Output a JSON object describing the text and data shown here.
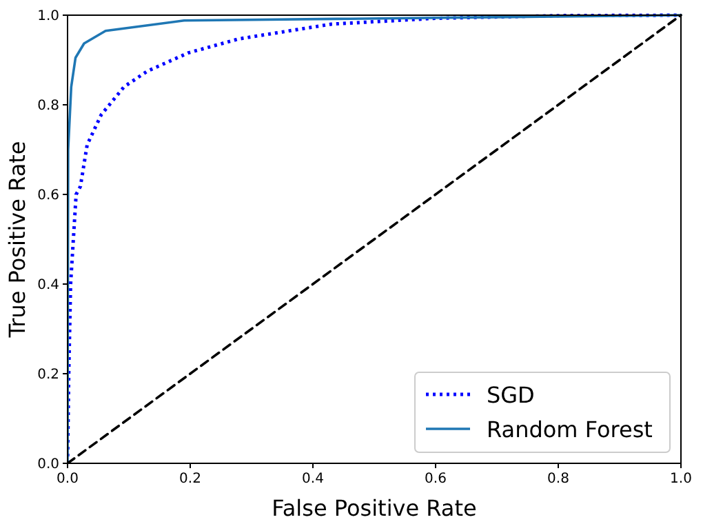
{
  "chart_data": {
    "type": "line",
    "xlabel": "False Positive Rate",
    "ylabel": "True Positive Rate",
    "xlim": [
      0,
      1
    ],
    "ylim": [
      0,
      1
    ],
    "xticks": [
      {
        "value": 0,
        "label": "0.0"
      },
      0.2,
      0.4,
      0.6,
      0.8,
      {
        "value": 1,
        "label": "1.0"
      }
    ],
    "yticks": [
      {
        "value": 0,
        "label": "0.0"
      },
      0.2,
      0.4,
      0.6,
      0.8,
      {
        "value": 1,
        "label": "1.0"
      }
    ],
    "legend": "bottom right",
    "grid": false,
    "series": [
      {
        "name": "SGD",
        "color": "#0000ff",
        "line_style": "dotted",
        "x": [
          0,
          0.002,
          0.005,
          0.014,
          0.021,
          0.032,
          0.055,
          0.092,
          0.13,
          0.197,
          0.279,
          0.43,
          0.6,
          0.8,
          1
        ],
        "values": [
          0,
          0.2,
          0.4,
          0.6,
          0.618,
          0.711,
          0.778,
          0.84,
          0.875,
          0.916,
          0.947,
          0.98,
          0.993,
          0.999,
          1
        ]
      },
      {
        "name": "Random Forest",
        "color": "#1f77b4",
        "line_style": "solid",
        "x": [
          0,
          0.001,
          0.006,
          0.013,
          0.027,
          0.062,
          0.19,
          1
        ],
        "values": [
          0,
          0.7,
          0.84,
          0.905,
          0.937,
          0.965,
          0.988,
          1
        ]
      },
      {
        "color": "#000000",
        "line_style": "dashed",
        "x": [
          0,
          1
        ],
        "values": [
          0,
          1
        ]
      }
    ]
  }
}
